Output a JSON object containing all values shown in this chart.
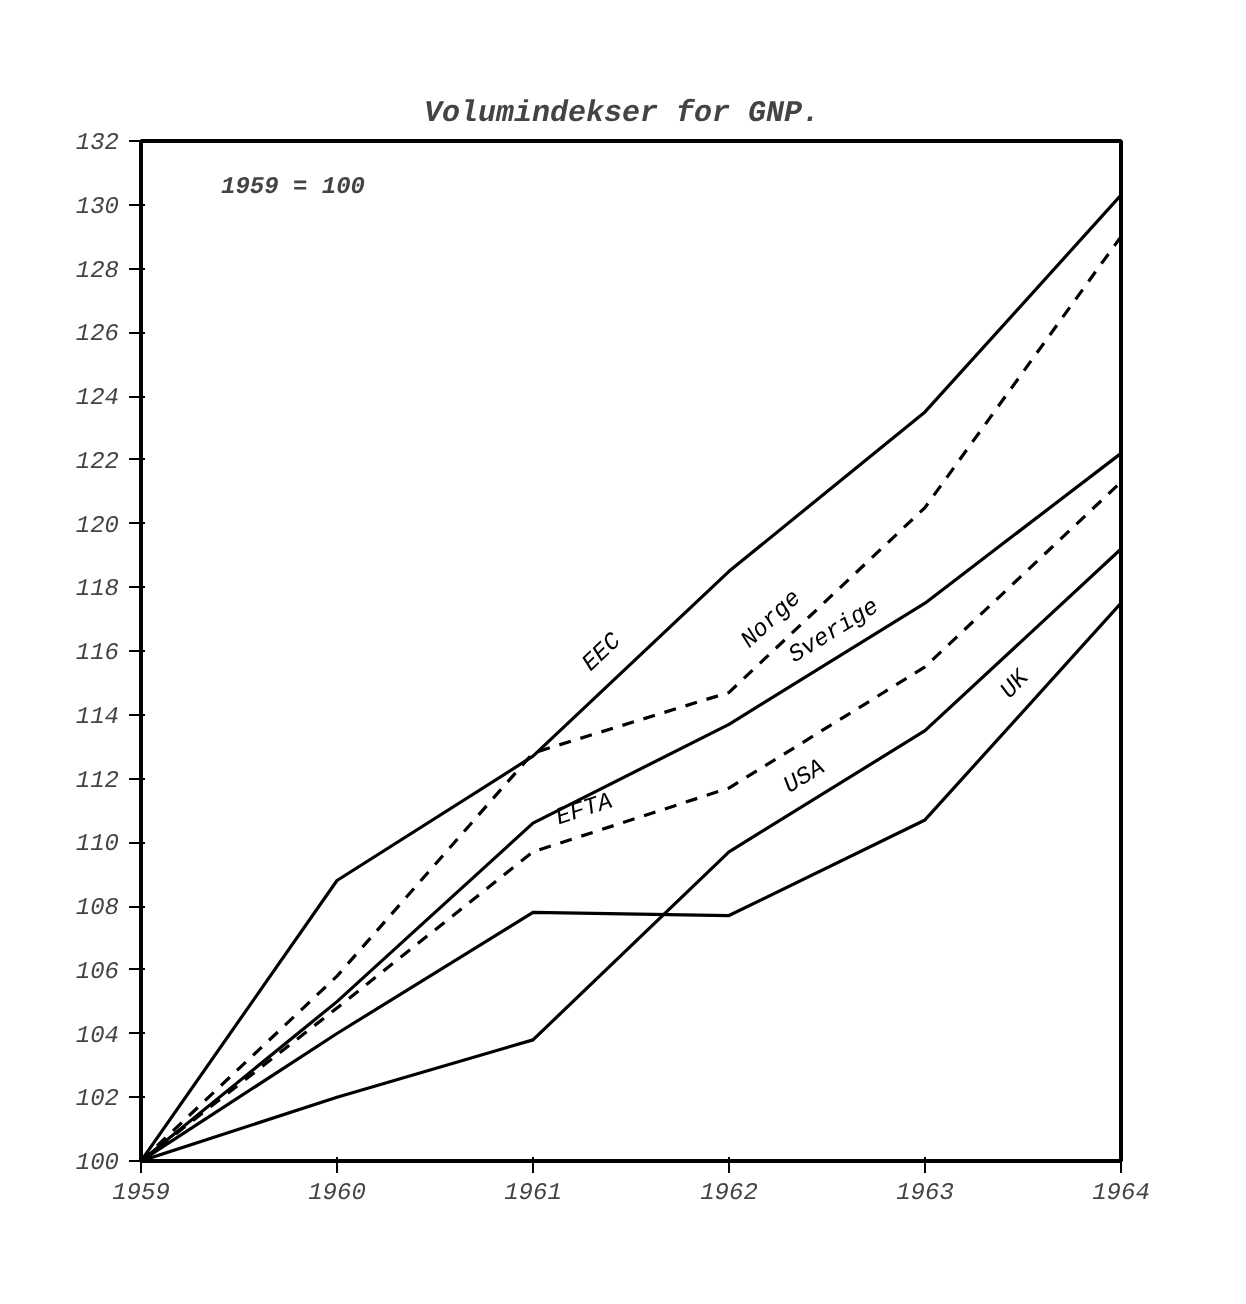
{
  "chart_data": {
    "type": "line",
    "title": "Volumindekser  for GNP.",
    "annotations": [
      "1959 = 100"
    ],
    "x": [
      1959,
      1960,
      1961,
      1962,
      1963,
      1964
    ],
    "series": [
      {
        "name": "EEC",
        "color": "#000000",
        "line_style": "solid",
        "values": [
          100,
          108.8,
          112.7,
          118.5,
          123.5,
          130.3
        ]
      },
      {
        "name": "Norge",
        "color": "#000000",
        "line_style": "dashed",
        "values": [
          100,
          105.8,
          112.8,
          114.7,
          120.5,
          129.0
        ]
      },
      {
        "name": "Sverige",
        "color": "#000000",
        "line_style": "solid",
        "values": [
          100,
          105.0,
          110.6,
          113.7,
          117.5,
          122.2
        ]
      },
      {
        "name": "EFTA",
        "color": "#000000",
        "line_style": "dashed",
        "values": [
          100,
          104.8,
          109.7,
          111.7,
          115.5,
          121.3
        ]
      },
      {
        "name": "USA",
        "color": "#000000",
        "line_style": "solid",
        "values": [
          100,
          102.0,
          103.8,
          109.7,
          113.5,
          119.2
        ]
      },
      {
        "name": "UK",
        "color": "#000000",
        "line_style": "solid",
        "values": [
          100,
          104.0,
          107.8,
          107.7,
          110.7,
          117.5
        ]
      }
    ],
    "xlim": [
      1959,
      1964
    ],
    "ylim": [
      100,
      132
    ],
    "xticks": [
      1959,
      1960,
      1961,
      1962,
      1963,
      1964
    ],
    "yticks": [
      100,
      102,
      104,
      106,
      108,
      110,
      112,
      114,
      116,
      118,
      120,
      122,
      124,
      126,
      128,
      130,
      132
    ],
    "grid": false,
    "legend": false,
    "marker": "none"
  }
}
